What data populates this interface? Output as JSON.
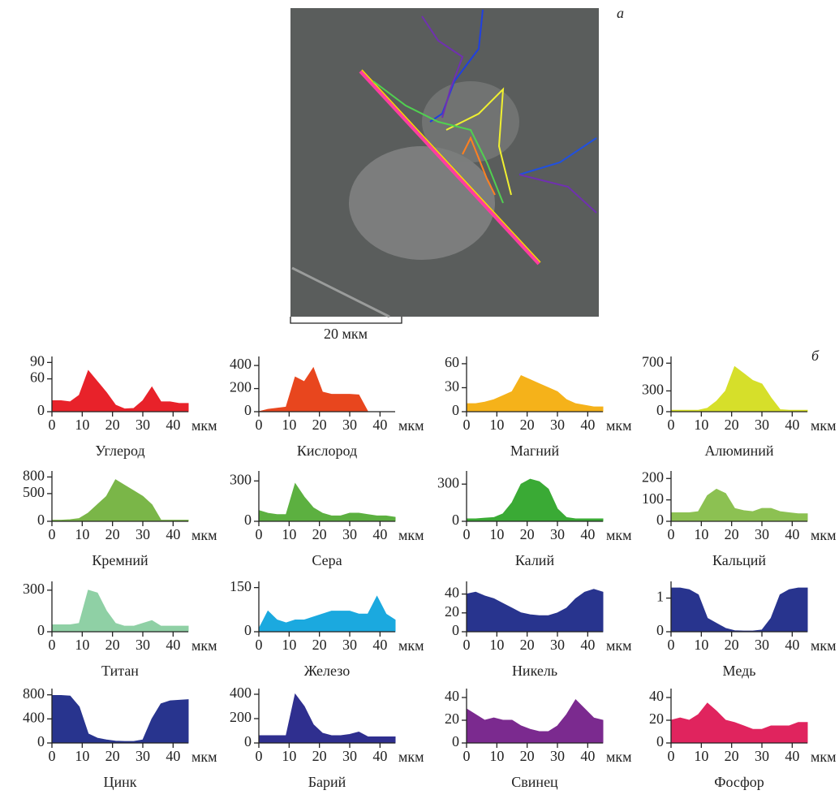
{
  "image": {
    "label": "а",
    "scale_label": "20 мкм"
  },
  "panel_label": "б",
  "chart_data": [
    {
      "type": "area",
      "title": "Углерод",
      "x_label": "мкм",
      "color": "#e8222a",
      "x": [
        0,
        3,
        6,
        9,
        12,
        15,
        18,
        21,
        24,
        27,
        30,
        33,
        36,
        39,
        42,
        45
      ],
      "values": [
        20,
        20,
        18,
        30,
        75,
        55,
        35,
        12,
        5,
        6,
        20,
        45,
        18,
        18,
        15,
        15
      ],
      "xlim": [
        0,
        45
      ],
      "xticks": [
        0,
        10,
        20,
        30,
        40
      ],
      "ylim": [
        0,
        95
      ],
      "yticks": [
        0,
        60,
        90
      ]
    },
    {
      "type": "area",
      "title": "Кислород",
      "x_label": "мкм",
      "color": "#e8461e",
      "x": [
        0,
        3,
        6,
        9,
        12,
        15,
        18,
        21,
        24,
        27,
        30,
        33,
        36,
        39,
        42,
        45
      ],
      "values": [
        0,
        20,
        30,
        40,
        300,
        260,
        380,
        170,
        150,
        150,
        150,
        145,
        0,
        0,
        0,
        0
      ],
      "xlim": [
        0,
        45
      ],
      "xticks": [
        0,
        10,
        20,
        30,
        40
      ],
      "ylim": [
        0,
        450
      ],
      "yticks": [
        0,
        200,
        400
      ]
    },
    {
      "type": "area",
      "title": "Магний",
      "x_label": "мкм",
      "color": "#f5b21a",
      "x": [
        0,
        3,
        6,
        9,
        12,
        15,
        18,
        21,
        24,
        27,
        30,
        33,
        36,
        39,
        42,
        45
      ],
      "values": [
        10,
        10,
        12,
        15,
        20,
        25,
        45,
        40,
        35,
        30,
        25,
        15,
        10,
        8,
        6,
        6
      ],
      "xlim": [
        0,
        45
      ],
      "xticks": [
        0,
        10,
        20,
        30,
        40
      ],
      "ylim": [
        0,
        65
      ],
      "yticks": [
        0,
        30,
        60
      ]
    },
    {
      "type": "area",
      "title": "Алюминий",
      "x_label": "мкм",
      "color": "#d6df2a",
      "x": [
        0,
        3,
        6,
        9,
        12,
        15,
        18,
        21,
        24,
        27,
        30,
        33,
        36,
        39,
        42,
        45
      ],
      "values": [
        20,
        20,
        20,
        20,
        50,
        150,
        300,
        650,
        550,
        450,
        400,
        200,
        30,
        20,
        20,
        20
      ],
      "xlim": [
        0,
        45
      ],
      "xticks": [
        0,
        10,
        20,
        30,
        40
      ],
      "ylim": [
        0,
        750
      ],
      "yticks": [
        0,
        300,
        700
      ]
    },
    {
      "type": "area",
      "title": "Кремний",
      "x_label": "мкм",
      "color": "#7ab648",
      "x": [
        0,
        3,
        6,
        9,
        12,
        15,
        18,
        21,
        24,
        27,
        30,
        33,
        36,
        39,
        42,
        45
      ],
      "values": [
        20,
        20,
        30,
        50,
        150,
        300,
        450,
        750,
        650,
        550,
        450,
        300,
        20,
        20,
        20,
        20
      ],
      "xlim": [
        0,
        45
      ],
      "xticks": [
        0,
        10,
        20,
        30,
        40
      ],
      "ylim": [
        0,
        850
      ],
      "yticks": [
        0,
        500,
        800
      ]
    },
    {
      "type": "area",
      "title": "Сера",
      "x_label": "мкм",
      "color": "#5cb040",
      "x": [
        0,
        3,
        6,
        9,
        12,
        15,
        18,
        21,
        24,
        27,
        30,
        33,
        36,
        39,
        42,
        45
      ],
      "values": [
        80,
        60,
        50,
        50,
        280,
        180,
        100,
        60,
        40,
        40,
        60,
        60,
        50,
        40,
        40,
        30
      ],
      "xlim": [
        0,
        45
      ],
      "xticks": [
        0,
        10,
        20,
        30,
        40
      ],
      "ylim": [
        0,
        350
      ],
      "yticks": [
        0,
        300
      ]
    },
    {
      "type": "area",
      "title": "Калий",
      "x_label": "мкм",
      "color": "#3aaa35",
      "x": [
        0,
        3,
        6,
        9,
        12,
        15,
        18,
        21,
        24,
        27,
        30,
        33,
        36,
        39,
        42,
        45
      ],
      "values": [
        20,
        20,
        25,
        30,
        60,
        150,
        300,
        340,
        320,
        260,
        100,
        30,
        20,
        20,
        20,
        20
      ],
      "xlim": [
        0,
        45
      ],
      "xticks": [
        0,
        10,
        20,
        30,
        40
      ],
      "ylim": [
        0,
        380
      ],
      "yticks": [
        0,
        300
      ]
    },
    {
      "type": "area",
      "title": "Кальций",
      "x_label": "мкм",
      "color": "#8cc152",
      "x": [
        0,
        3,
        6,
        9,
        12,
        15,
        18,
        21,
        24,
        27,
        30,
        33,
        36,
        39,
        42,
        45
      ],
      "values": [
        40,
        40,
        40,
        45,
        120,
        150,
        130,
        60,
        50,
        45,
        60,
        60,
        45,
        40,
        35,
        35
      ],
      "xlim": [
        0,
        45
      ],
      "xticks": [
        0,
        10,
        20,
        30,
        40
      ],
      "ylim": [
        0,
        220
      ],
      "yticks": [
        0,
        100,
        200
      ]
    },
    {
      "type": "area",
      "title": "Титан",
      "x_label": "мкм",
      "color": "#8fd0a5",
      "x": [
        0,
        3,
        6,
        9,
        12,
        15,
        18,
        21,
        24,
        27,
        30,
        33,
        36,
        39,
        42,
        45
      ],
      "values": [
        50,
        50,
        50,
        60,
        300,
        280,
        150,
        60,
        40,
        40,
        60,
        80,
        40,
        40,
        40,
        40
      ],
      "xlim": [
        0,
        45
      ],
      "xticks": [
        0,
        10,
        20,
        30,
        40
      ],
      "ylim": [
        0,
        340
      ],
      "yticks": [
        0,
        300
      ]
    },
    {
      "type": "area",
      "title": "Железо",
      "x_label": "мкм",
      "color": "#1ba9df",
      "x": [
        0,
        3,
        6,
        9,
        12,
        15,
        18,
        21,
        24,
        27,
        30,
        33,
        36,
        39,
        42,
        45
      ],
      "values": [
        10,
        70,
        40,
        30,
        40,
        40,
        50,
        60,
        70,
        70,
        70,
        60,
        60,
        120,
        60,
        40
      ],
      "xlim": [
        0,
        45
      ],
      "xticks": [
        0,
        10,
        20,
        30,
        40
      ],
      "ylim": [
        0,
        160
      ],
      "yticks": [
        0,
        150
      ]
    },
    {
      "type": "area",
      "title": "Никель",
      "x_label": "мкм",
      "color": "#28348e",
      "x": [
        0,
        3,
        6,
        9,
        12,
        15,
        18,
        21,
        24,
        27,
        30,
        33,
        36,
        39,
        42,
        45
      ],
      "values": [
        40,
        42,
        38,
        35,
        30,
        25,
        20,
        18,
        17,
        17,
        20,
        25,
        35,
        42,
        45,
        42
      ],
      "xlim": [
        0,
        45
      ],
      "xticks": [
        0,
        10,
        20,
        30,
        40
      ],
      "ylim": [
        0,
        50
      ],
      "yticks": [
        0,
        20,
        40
      ]
    },
    {
      "type": "area",
      "title": "Медь",
      "x_label": "мкм",
      "color": "#28348e",
      "x": [
        0,
        3,
        6,
        9,
        12,
        15,
        18,
        21,
        24,
        27,
        30,
        33,
        36,
        39,
        42,
        45
      ],
      "values": [
        1.3,
        1.3,
        1.25,
        1.1,
        0.4,
        0.25,
        0.1,
        0.03,
        0.02,
        0.02,
        0.05,
        0.4,
        1.1,
        1.25,
        1.3,
        1.3
      ],
      "xlim": [
        0,
        45
      ],
      "xticks": [
        0,
        10,
        20,
        30,
        40
      ],
      "ylim": [
        0,
        1.4
      ],
      "yticks": [
        0,
        1
      ]
    },
    {
      "type": "area",
      "title": "Цинк",
      "x_label": "мкм",
      "color": "#28348e",
      "x": [
        0,
        3,
        6,
        9,
        12,
        15,
        18,
        21,
        24,
        27,
        30,
        33,
        36,
        39,
        42,
        45
      ],
      "values": [
        790,
        790,
        780,
        600,
        150,
        80,
        50,
        30,
        25,
        25,
        50,
        400,
        650,
        700,
        710,
        720
      ],
      "xlim": [
        0,
        45
      ],
      "xticks": [
        0,
        10,
        20,
        30,
        40
      ],
      "ylim": [
        0,
        850
      ],
      "yticks": [
        0,
        400,
        800
      ]
    },
    {
      "type": "area",
      "title": "Барий",
      "x_label": "мкм",
      "color": "#2f2f8f",
      "x": [
        0,
        3,
        6,
        9,
        12,
        15,
        18,
        21,
        24,
        27,
        30,
        33,
        36,
        39,
        42,
        45
      ],
      "values": [
        60,
        60,
        60,
        60,
        400,
        300,
        150,
        80,
        60,
        60,
        70,
        90,
        50,
        50,
        50,
        50
      ],
      "xlim": [
        0,
        45
      ],
      "xticks": [
        0,
        10,
        20,
        30,
        40
      ],
      "ylim": [
        0,
        420
      ],
      "yticks": [
        0,
        200,
        400
      ]
    },
    {
      "type": "area",
      "title": "Свинец",
      "x_label": "мкм",
      "color": "#7b2a8f",
      "x": [
        0,
        3,
        6,
        9,
        12,
        15,
        18,
        21,
        24,
        27,
        30,
        33,
        36,
        39,
        42,
        45
      ],
      "values": [
        30,
        25,
        20,
        22,
        20,
        20,
        15,
        12,
        10,
        10,
        15,
        25,
        38,
        30,
        22,
        20
      ],
      "xlim": [
        0,
        45
      ],
      "xticks": [
        0,
        10,
        20,
        30,
        40
      ],
      "ylim": [
        0,
        45
      ],
      "yticks": [
        0,
        20,
        40
      ]
    },
    {
      "type": "area",
      "title": "Фосфор",
      "x_label": "мкм",
      "color": "#e0245e",
      "x": [
        0,
        3,
        6,
        9,
        12,
        15,
        18,
        21,
        24,
        27,
        30,
        33,
        36,
        39,
        42,
        45
      ],
      "values": [
        20,
        22,
        20,
        25,
        35,
        28,
        20,
        18,
        15,
        12,
        12,
        15,
        15,
        15,
        18,
        18
      ],
      "xlim": [
        0,
        45
      ],
      "xticks": [
        0,
        10,
        20,
        30,
        40
      ],
      "ylim": [
        0,
        45
      ],
      "yticks": [
        0,
        20,
        40
      ]
    }
  ]
}
